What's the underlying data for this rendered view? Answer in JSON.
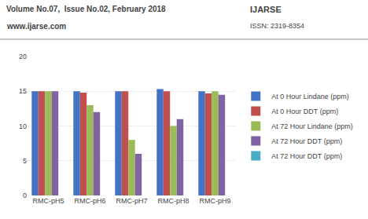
{
  "chart_data": {
    "type": "bar",
    "annotations": [
      "Volume No.07,  Issue No.02, February 2018",
      "www.ijarse.com",
      "IJARSE",
      "ISSN: 2319-8354"
    ],
    "categories": [
      "RMC-pH5",
      "RMC-pH6",
      "RMC-pH7",
      "RMC-pH8",
      "RMC-pH9"
    ],
    "series": [
      {
        "name": "At 0 Hour Lindane (ppm)",
        "color": "#4472C4",
        "values": [
          15,
          15,
          15,
          15.3,
          15
        ]
      },
      {
        "name": "At 0 Hour DDT (ppm)",
        "color": "#C0504D",
        "values": [
          15,
          14.8,
          15,
          15,
          14.7
        ]
      },
      {
        "name": "At 72 Hour Lindane (ppm)",
        "color": "#9BBB59",
        "values": [
          15,
          13,
          8,
          10,
          15
        ]
      },
      {
        "name": "At 72 Hour DDT (ppm)",
        "color": "#8064A2",
        "values": [
          15,
          12,
          6,
          11,
          14.5
        ]
      },
      {
        "name": "At 72 Hour DDT (ppm)",
        "color": "#4BACC6",
        "values": [
          0,
          0,
          0,
          0,
          0
        ]
      }
    ],
    "ylim": [
      0,
      20
    ],
    "yticks": [
      0,
      5,
      10,
      15,
      20
    ],
    "grid": true,
    "legend": "right"
  }
}
